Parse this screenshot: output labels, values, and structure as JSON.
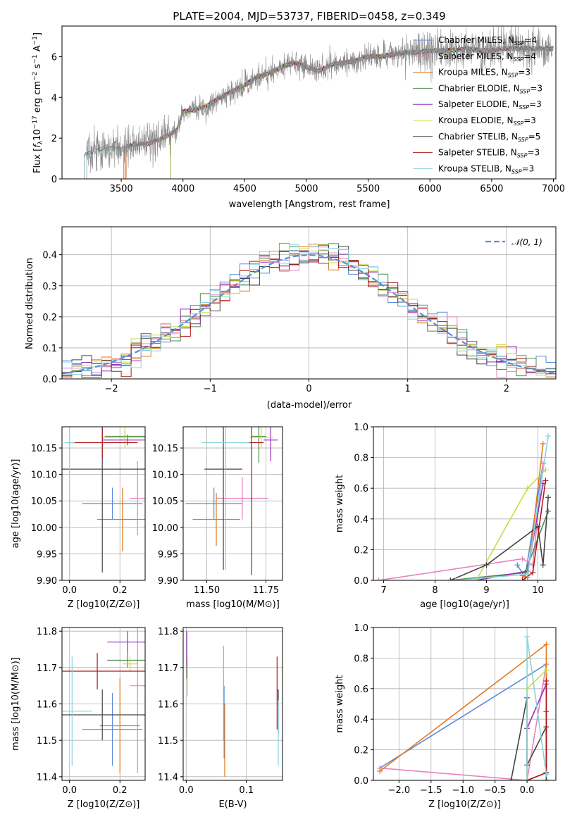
{
  "colors": {
    "Chabrier MILES": "#5b8bd9",
    "Salpeter MILES": "#e584c0",
    "Kroupa MILES": "#e07a1f",
    "Chabrier ELODIE": "#4f8a50",
    "Salpeter ELODIE": "#9a2cb8",
    "Kroupa ELODIE": "#c8dc40",
    "Chabrier STELIB": "#444444",
    "Salpeter STELIB": "#b01818",
    "Kroupa STELIB": "#88d4dc",
    "data": "#888888"
  },
  "chart_data": [
    {
      "type": "line",
      "title": "PLATE=2004, MJD=53737, FIBERID=0458, z=0.349",
      "xlabel": "wavelength [Angstrom, rest frame]",
      "ylabel": "Flux [f_λ 10^-17 erg cm^-2 s^-1 A^-1]",
      "xlim": [
        3020,
        7020
      ],
      "ylim": [
        0,
        7.5
      ],
      "xticks": [
        "3500",
        "4000",
        "4500",
        "5000",
        "5500",
        "6000",
        "6500",
        "7000"
      ],
      "yticks": [
        "0",
        "2",
        "4",
        "6"
      ],
      "legend": "top-right",
      "series": [
        {
          "name": "Chabrier MILES, N_SSP=4",
          "start": 3520,
          "end": 7000
        },
        {
          "name": "Salpeter MILES, N_SSP=4",
          "start": 3520,
          "end": 7000
        },
        {
          "name": "Kroupa MILES, N_SSP=3",
          "start": 3540,
          "end": 7000
        },
        {
          "name": "Chabrier ELODIE, N_SSP=3",
          "start": 3900,
          "end": 7000
        },
        {
          "name": "Salpeter ELODIE, N_SSP=3",
          "start": 3900,
          "end": 7000
        },
        {
          "name": "Kroupa ELODIE, N_SSP=3",
          "start": 3900,
          "end": 6800
        },
        {
          "name": "Chabrier STELIB, N_SSP=5",
          "start": 3200,
          "end": 7000
        },
        {
          "name": "Salpeter STELIB, N_SSP=3",
          "start": 3530,
          "end": 7000
        },
        {
          "name": "Kroupa STELIB, N_SSP=3",
          "start": 3200,
          "end": 7000
        }
      ],
      "continuum": {
        "x": [
          3220,
          3300,
          3400,
          3500,
          3600,
          3700,
          3800,
          3900,
          3950,
          4000,
          4100,
          4200,
          4300,
          4400,
          4500,
          4600,
          4700,
          4800,
          4900,
          5000,
          5100,
          5200,
          5300,
          5400,
          5500,
          5600,
          5700,
          5800,
          5900,
          6000,
          6100,
          6200,
          6300,
          6400,
          6500,
          6600,
          6700,
          6800,
          6900
        ],
        "y": [
          1.2,
          1.4,
          1.5,
          1.5,
          1.7,
          1.7,
          1.9,
          2.2,
          2.4,
          3.3,
          3.4,
          3.6,
          4.0,
          4.3,
          4.6,
          5.0,
          5.2,
          5.5,
          5.7,
          5.5,
          5.3,
          5.6,
          5.7,
          5.8,
          6.0,
          6.0,
          6.1,
          6.2,
          6.2,
          6.3,
          6.3,
          6.3,
          6.4,
          6.3,
          6.3,
          6.4,
          6.4,
          6.4,
          6.4
        ]
      }
    },
    {
      "type": "line",
      "xlabel": "(data-model)/error",
      "ylabel": "Normed distribution",
      "xlim": [
        -2.5,
        2.5
      ],
      "ylim": [
        0,
        0.49
      ],
      "xticks": [
        "−2",
        "−1",
        "0",
        "1",
        "2"
      ],
      "yticks": [
        "0.0",
        "0.1",
        "0.2",
        "0.3",
        "0.4"
      ],
      "legend": "top-right",
      "gaussian_label": "𝒩(0, 1)",
      "hist_bins": [
        -2.5,
        2.5,
        50
      ]
    },
    {
      "type": "scatter",
      "xlabel": "Z [log10(Z/Z⊙)]",
      "ylabel": "age [log10(age/yr)]",
      "xlim": [
        -0.03,
        0.3
      ],
      "ylim": [
        9.9,
        10.19
      ],
      "xticks": [
        "0.0",
        "0.2"
      ],
      "yticks": [
        "9.90",
        "9.95",
        "10.00",
        "10.05",
        "10.10",
        "10.15"
      ],
      "points": [
        {
          "s": "Chabrier MILES",
          "x": 0.17,
          "y": 10.045,
          "xe": 0.12,
          "ye": 0.03
        },
        {
          "s": "Salpeter MILES",
          "x": 0.27,
          "y": 10.055,
          "xe": 0.03,
          "ye": 0.07
        },
        {
          "s": "Kroupa MILES",
          "x": 0.21,
          "y": 10.015,
          "xe": 0.1,
          "ye": 0.06
        },
        {
          "s": "Chabrier ELODIE",
          "x": 0.22,
          "y": 10.172,
          "xe": 0.08,
          "ye": 0.01
        },
        {
          "s": "Salpeter ELODIE",
          "x": 0.23,
          "y": 10.165,
          "xe": 0.1,
          "ye": 0.01
        },
        {
          "s": "Kroupa ELODIE",
          "x": 0.22,
          "y": 10.17,
          "xe": 0.09,
          "ye": 0.02
        },
        {
          "s": "Chabrier STELIB",
          "x": 0.13,
          "y": 10.11,
          "xe": 0.2,
          "ye": 0.195
        },
        {
          "s": "Salpeter STELIB",
          "x": 0.13,
          "y": 10.16,
          "xe": 0.14,
          "ye": 0.03
        },
        {
          "s": "Kroupa STELIB",
          "x": 0.0,
          "y": 10.16,
          "xe": 0.02,
          "ye": 0.25
        }
      ]
    },
    {
      "type": "scatter",
      "xlabel": "mass [log10(M/M⊙)]",
      "ylabel": "",
      "xlim": [
        11.4,
        11.82
      ],
      "ylim": [
        9.9,
        10.19
      ],
      "xticks": [
        "11.50",
        "11.75"
      ],
      "yticks": [
        "9.90",
        "9.95",
        "10.00",
        "10.05",
        "10.10",
        "10.15"
      ],
      "points": [
        {
          "s": "Chabrier MILES",
          "x": 11.53,
          "y": 10.045,
          "xe": 0.12,
          "ye": 0.03
        },
        {
          "s": "Salpeter MILES",
          "x": 11.65,
          "y": 10.055,
          "xe": 0.11,
          "ye": 0.04
        },
        {
          "s": "Kroupa MILES",
          "x": 11.54,
          "y": 10.015,
          "xe": 0.1,
          "ye": 0.05
        },
        {
          "s": "Chabrier ELODIE",
          "x": 11.72,
          "y": 10.172,
          "xe": 0.03,
          "ye": 0.05
        },
        {
          "s": "Salpeter ELODIE",
          "x": 11.77,
          "y": 10.165,
          "xe": 0.03,
          "ye": 0.04
        },
        {
          "s": "Kroupa ELODIE",
          "x": 11.73,
          "y": 10.17,
          "xe": 0.05,
          "ye": 0.02
        },
        {
          "s": "Chabrier STELIB",
          "x": 11.57,
          "y": 10.11,
          "xe": 0.08,
          "ye": 0.19
        },
        {
          "s": "Salpeter STELIB",
          "x": 11.69,
          "y": 10.16,
          "xe": 0.05,
          "ye": 0.25
        },
        {
          "s": "Kroupa STELIB",
          "x": 11.58,
          "y": 10.16,
          "xe": 0.1,
          "ye": 0.24
        }
      ]
    },
    {
      "type": "line",
      "xlabel": "age [log10(age/yr)]",
      "ylabel": "mass weight",
      "xlim": [
        6.8,
        10.35
      ],
      "ylim": [
        0,
        1.0
      ],
      "xticks": [
        "7",
        "8",
        "9",
        "10"
      ],
      "yticks": [
        "0.0",
        "0.2",
        "0.4",
        "0.6",
        "0.8",
        "1.0"
      ],
      "series": [
        {
          "s": "Chabrier MILES",
          "x": [
            9.6,
            9.75,
            10.1
          ],
          "y": [
            0.1,
            0.02,
            0.76
          ]
        },
        {
          "s": "Salpeter MILES",
          "x": [
            6.9,
            9.7,
            9.9,
            10.1
          ],
          "y": [
            0.0,
            0.14,
            0.1,
            0.76
          ]
        },
        {
          "s": "Kroupa MILES",
          "x": [
            9.7,
            9.8,
            10.1
          ],
          "y": [
            0.03,
            0.02,
            0.89
          ]
        },
        {
          "s": "Chabrier ELODIE",
          "x": [
            8.3,
            9.75,
            10.2
          ],
          "y": [
            0.0,
            0.05,
            0.45
          ]
        },
        {
          "s": "Salpeter ELODIE",
          "x": [
            8.8,
            9.8,
            10.1
          ],
          "y": [
            0.0,
            0.06,
            0.63
          ]
        },
        {
          "s": "Kroupa ELODIE",
          "x": [
            8.8,
            9.8,
            10.15
          ],
          "y": [
            0.0,
            0.6,
            0.72
          ]
        },
        {
          "s": "Chabrier STELIB",
          "x": [
            8.3,
            9.0,
            10.0,
            10.1,
            10.2
          ],
          "y": [
            0.0,
            0.1,
            0.35,
            0.1,
            0.54
          ]
        },
        {
          "s": "Salpeter STELIB",
          "x": [
            9.7,
            9.9,
            10.15
          ],
          "y": [
            0.0,
            0.05,
            0.65
          ]
        },
        {
          "s": "Kroupa STELIB",
          "x": [
            8.4,
            9.8,
            10.2
          ],
          "y": [
            0.0,
            0.04,
            0.94
          ]
        }
      ]
    },
    {
      "type": "scatter",
      "xlabel": "Z [log10(Z/Z⊙)]",
      "ylabel": "mass [log10(M/M⊙)]",
      "xlim": [
        -0.03,
        0.3
      ],
      "ylim": [
        11.39,
        11.81
      ],
      "xticks": [
        "0.0",
        "0.2"
      ],
      "yticks": [
        "11.4",
        "11.5",
        "11.6",
        "11.7",
        "11.8"
      ],
      "points": [
        {
          "s": "Chabrier MILES",
          "x": 0.17,
          "y": 11.53,
          "xe": 0.12,
          "ye": 0.1
        },
        {
          "s": "Salpeter MILES",
          "x": 0.27,
          "y": 11.65,
          "xe": 0.03,
          "ye": 0.24
        },
        {
          "s": "Kroupa MILES",
          "x": 0.2,
          "y": 11.54,
          "xe": 0.08,
          "ye": 0.13
        },
        {
          "s": "Chabrier ELODIE",
          "x": 0.23,
          "y": 11.72,
          "xe": 0.08,
          "ye": 0.02
        },
        {
          "s": "Salpeter ELODIE",
          "x": 0.23,
          "y": 11.77,
          "xe": 0.08,
          "ye": 0.03
        },
        {
          "s": "Kroupa ELODIE",
          "x": 0.24,
          "y": 11.71,
          "xe": 0.03,
          "ye": 0.02
        },
        {
          "s": "Chabrier STELIB",
          "x": 0.13,
          "y": 11.57,
          "xe": 0.2,
          "ye": 0.07
        },
        {
          "s": "Salpeter STELIB",
          "x": 0.11,
          "y": 11.69,
          "xe": 0.19,
          "ye": 0.05
        },
        {
          "s": "Kroupa STELIB",
          "x": 0.01,
          "y": 11.58,
          "xe": 0.08,
          "ye": 0.15
        }
      ]
    },
    {
      "type": "scatter",
      "xlabel": "E(B-V)",
      "ylabel": "",
      "xlim": [
        -0.005,
        0.16
      ],
      "ylim": [
        11.39,
        11.81
      ],
      "xticks": [
        "0.0",
        "0.1"
      ],
      "yticks": [
        "11.4",
        "11.5",
        "11.6",
        "11.7",
        "11.8"
      ],
      "points": [
        {
          "s": "Chabrier MILES",
          "x": 0.063,
          "y": 11.55,
          "ye": 0.1
        },
        {
          "s": "Salpeter MILES",
          "x": 0.062,
          "y": 11.63,
          "ye": 0.13
        },
        {
          "s": "Kroupa MILES",
          "x": 0.064,
          "y": 11.5,
          "ye": 0.1
        },
        {
          "s": "Chabrier ELODIE",
          "x": 0.001,
          "y": 11.7,
          "ye": 0.03
        },
        {
          "s": "Salpeter ELODIE",
          "x": 0.001,
          "y": 11.75,
          "ye": 0.05
        },
        {
          "s": "Kroupa ELODIE",
          "x": 0.002,
          "y": 11.67,
          "ye": 0.05
        },
        {
          "s": "Chabrier STELIB",
          "x": 0.153,
          "y": 11.58,
          "ye": 0.06
        },
        {
          "s": "Salpeter STELIB",
          "x": 0.151,
          "y": 11.63,
          "ye": 0.1
        },
        {
          "s": "Kroupa STELIB",
          "x": 0.153,
          "y": 11.52,
          "ye": 0.09
        }
      ]
    },
    {
      "type": "line",
      "xlabel": "Z [log10(Z/Z⊙)]",
      "ylabel": "mass weight",
      "xlim": [
        -2.4,
        0.45
      ],
      "ylim": [
        0,
        1.0
      ],
      "xticks": [
        "−2.0",
        "−1.5",
        "−1.0",
        "−0.5",
        "0.0"
      ],
      "yticks": [
        "0.0",
        "0.2",
        "0.4",
        "0.6",
        "0.8",
        "1.0"
      ],
      "series": [
        {
          "s": "Chabrier MILES",
          "x": [
            -2.3,
            0.3,
            0.3
          ],
          "y": [
            0.08,
            0.76,
            0.0
          ]
        },
        {
          "s": "Salpeter MILES",
          "x": [
            0.0,
            -2.3,
            0.0,
            0.3
          ],
          "y": [
            0.0,
            0.08,
            0.0,
            0.76
          ]
        },
        {
          "s": "Kroupa MILES",
          "x": [
            -2.3,
            0.3,
            0.3
          ],
          "y": [
            0.06,
            0.89,
            0.0
          ]
        },
        {
          "s": "Chabrier ELODIE",
          "x": [
            0.0,
            0.3,
            0.3
          ],
          "y": [
            0.0,
            0.05,
            0.45
          ]
        },
        {
          "s": "Salpeter ELODIE",
          "x": [
            0.0,
            0.0,
            0.3
          ],
          "y": [
            0.0,
            0.34,
            0.63
          ]
        },
        {
          "s": "Kroupa ELODIE",
          "x": [
            0.0,
            0.0,
            0.3
          ],
          "y": [
            0.0,
            0.6,
            0.72
          ]
        },
        {
          "s": "Chabrier STELIB",
          "x": [
            -0.25,
            0.0,
            0.0,
            0.3,
            0.3
          ],
          "y": [
            0.0,
            0.54,
            0.1,
            0.35,
            0.0
          ]
        },
        {
          "s": "Salpeter STELIB",
          "x": [
            0.0,
            0.3,
            0.3
          ],
          "y": [
            0.0,
            0.05,
            0.65
          ]
        },
        {
          "s": "Kroupa STELIB",
          "x": [
            0.0,
            0.0,
            0.3
          ],
          "y": [
            0.0,
            0.94,
            0.04
          ]
        }
      ]
    }
  ]
}
